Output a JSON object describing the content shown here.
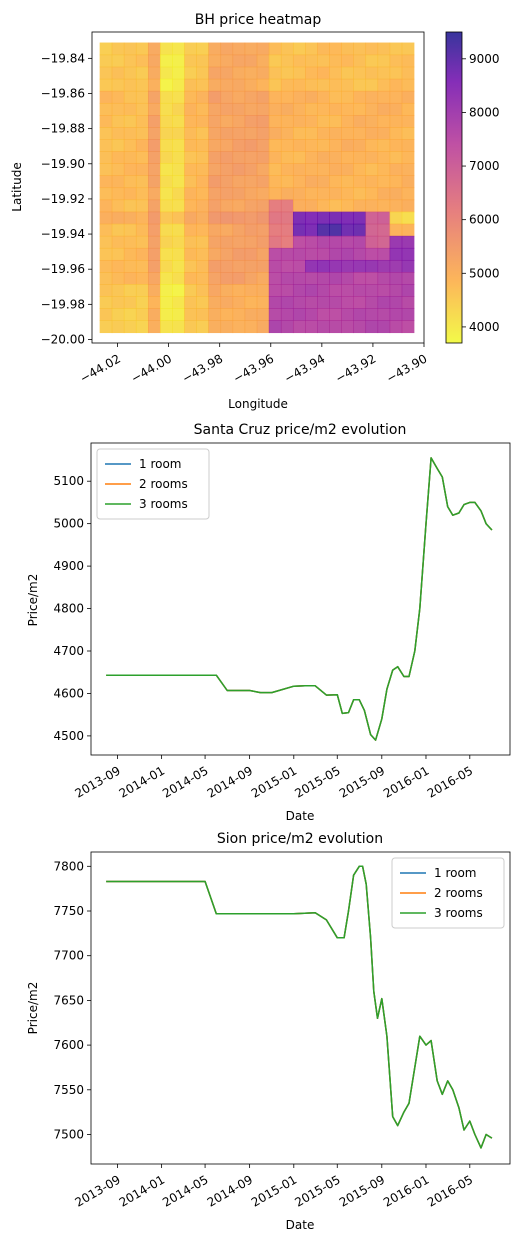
{
  "chart_data": [
    {
      "type": "heatmap",
      "title": "BH price heatmap",
      "xlabel": "Longitude",
      "ylabel": "Latitude",
      "xlim": [
        -44.03,
        -43.9
      ],
      "ylim": [
        -20.002,
        -19.825
      ],
      "x_ticks": [
        -44.02,
        -44.0,
        -43.98,
        -43.96,
        -43.94,
        -43.92,
        -43.9
      ],
      "x_tick_labels": [
        "−44.02",
        "−44.00",
        "−43.98",
        "−43.96",
        "−43.94",
        "−43.92",
        "−43.90"
      ],
      "y_ticks": [
        -19.84,
        -19.86,
        -19.88,
        -19.9,
        -19.92,
        -19.94,
        -19.96,
        -19.98,
        -20.0
      ],
      "y_tick_labels": [
        "−19.84",
        "−19.86",
        "−19.88",
        "−19.90",
        "−19.92",
        "−19.94",
        "−19.96",
        "−19.98",
        "−20.00"
      ],
      "colorbar": {
        "min": 3700,
        "max": 9500,
        "ticks": [
          4000,
          5000,
          6000,
          7000,
          8000,
          9000
        ],
        "colormap": "plasma_r",
        "colors": [
          "#f0f921",
          "#fca636",
          "#e16462",
          "#b12a90",
          "#6a00a8",
          "#0d0887"
        ]
      },
      "grid_extent": {
        "x": [
          -44.027,
          -43.904
        ],
        "y": [
          -19.831,
          -19.996
        ]
      },
      "grid_cols": 26,
      "grid_rows": 24,
      "lon_zones": [
        {
          "from": -44.03,
          "to": -44.006,
          "price": 4750
        },
        {
          "from": -44.006,
          "to": -44.004,
          "price": 5300
        },
        {
          "from": -44.004,
          "to": -43.994,
          "price": 4200
        },
        {
          "from": -43.994,
          "to": -43.983,
          "price": 4800
        },
        {
          "from": -43.983,
          "to": -43.96,
          "price": 5300
        },
        {
          "from": -43.96,
          "to": -43.9,
          "price": 4900
        }
      ],
      "east_zones": [
        {
          "x0": -43.96,
          "x1": -43.9,
          "y0": -19.95,
          "y1": -20.0,
          "price": 7600
        },
        {
          "x0": -43.948,
          "x1": -43.9,
          "y0": -19.952,
          "y1": -19.962,
          "price": 8200
        },
        {
          "x0": -43.96,
          "x1": -43.95,
          "y0": -19.92,
          "y1": -19.95,
          "price": 6200
        },
        {
          "x0": -43.95,
          "x1": -43.925,
          "y0": -19.93,
          "y1": -19.94,
          "price": 8700
        },
        {
          "x0": -43.95,
          "x1": -43.925,
          "y0": -19.94,
          "y1": -19.948,
          "price": 7600
        },
        {
          "x0": -43.925,
          "x1": -43.915,
          "y0": -19.93,
          "y1": -19.95,
          "price": 6800
        },
        {
          "x0": -43.915,
          "x1": -43.9,
          "y0": -19.938,
          "y1": -19.952,
          "price": 8300
        },
        {
          "x0": -43.915,
          "x1": -43.9,
          "y0": -19.93,
          "y1": -19.937,
          "price": 4300
        },
        {
          "x0": -43.94,
          "x1": -43.932,
          "y0": -19.932,
          "y1": -19.94,
          "price": 9300
        }
      ]
    },
    {
      "type": "line",
      "title": "Santa Cruz price/m2 evolution",
      "xlabel": "Date",
      "ylabel": "Price/m2",
      "xlim": [
        "2013-06-20",
        "2016-08-20"
      ],
      "ylim": [
        4455,
        5190
      ],
      "x_ticks": [
        "2013-09-01",
        "2014-01-01",
        "2014-05-01",
        "2014-09-01",
        "2015-01-01",
        "2015-05-01",
        "2015-09-01",
        "2016-01-01",
        "2016-05-01"
      ],
      "x_tick_labels": [
        "2013-09",
        "2014-01",
        "2014-05",
        "2014-09",
        "2015-01",
        "2015-05",
        "2015-09",
        "2016-01",
        "2016-05"
      ],
      "y_ticks": [
        4500,
        4600,
        4700,
        4800,
        4900,
        5000,
        5100
      ],
      "legend": "top-left",
      "series": [
        {
          "name": "1 room",
          "color": "#1f77b4"
        },
        {
          "name": "2 rooms",
          "color": "#ff7f0e"
        },
        {
          "name": "3 rooms",
          "color": "#2ca02c"
        }
      ],
      "x": [
        "2013-08-01",
        "2014-06-01",
        "2014-07-01",
        "2014-08-01",
        "2014-09-01",
        "2014-10-01",
        "2014-11-01",
        "2015-01-01",
        "2015-02-01",
        "2015-03-01",
        "2015-04-01",
        "2015-05-01",
        "2015-05-15",
        "2015-06-01",
        "2015-06-15",
        "2015-07-01",
        "2015-07-15",
        "2015-08-01",
        "2015-08-15",
        "2015-09-01",
        "2015-09-15",
        "2015-10-01",
        "2015-10-15",
        "2015-11-01",
        "2015-11-15",
        "2015-12-01",
        "2015-12-15",
        "2016-01-01",
        "2016-01-15",
        "2016-02-01",
        "2016-02-15",
        "2016-03-01",
        "2016-03-15",
        "2016-04-01",
        "2016-04-15",
        "2016-05-01",
        "2016-05-15",
        "2016-06-01",
        "2016-06-15",
        "2016-07-01"
      ],
      "values": [
        4643,
        4643,
        4607,
        4607,
        4607,
        4602,
        4602,
        4617,
        4618,
        4618,
        4596,
        4597,
        4553,
        4555,
        4585,
        4585,
        4560,
        4503,
        4490,
        4540,
        4610,
        4655,
        4663,
        4640,
        4640,
        4700,
        4800,
        5000,
        5155,
        5130,
        5110,
        5040,
        5020,
        5025,
        5045,
        5050,
        5050,
        5030,
        5000,
        4985
      ]
    },
    {
      "type": "line",
      "title": "Sion price/m2 evolution",
      "xlabel": "Date",
      "ylabel": "Price/m2",
      "xlim": [
        "2013-06-20",
        "2016-08-20"
      ],
      "ylim": [
        7467,
        7816
      ],
      "x_ticks": [
        "2013-09-01",
        "2014-01-01",
        "2014-05-01",
        "2014-09-01",
        "2015-01-01",
        "2015-05-01",
        "2015-09-01",
        "2016-01-01",
        "2016-05-01"
      ],
      "x_tick_labels": [
        "2013-09",
        "2014-01",
        "2014-05",
        "2014-09",
        "2015-01",
        "2015-05",
        "2015-09",
        "2016-01",
        "2016-05"
      ],
      "y_ticks": [
        7500,
        7550,
        7600,
        7650,
        7700,
        7750,
        7800
      ],
      "legend": "top-right",
      "series": [
        {
          "name": "1 room",
          "color": "#1f77b4"
        },
        {
          "name": "2 rooms",
          "color": "#ff7f0e"
        },
        {
          "name": "3 rooms",
          "color": "#2ca02c"
        }
      ],
      "x": [
        "2013-08-01",
        "2014-05-01",
        "2014-06-01",
        "2014-07-01",
        "2014-09-01",
        "2014-11-01",
        "2015-01-01",
        "2015-03-01",
        "2015-04-01",
        "2015-05-01",
        "2015-05-20",
        "2015-06-01",
        "2015-06-15",
        "2015-07-01",
        "2015-07-10",
        "2015-07-20",
        "2015-08-01",
        "2015-08-10",
        "2015-08-20",
        "2015-09-01",
        "2015-09-15",
        "2015-10-01",
        "2015-10-15",
        "2015-11-01",
        "2015-11-15",
        "2015-12-01",
        "2015-12-15",
        "2016-01-01",
        "2016-01-15",
        "2016-02-01",
        "2016-02-15",
        "2016-03-01",
        "2016-03-15",
        "2016-04-01",
        "2016-04-15",
        "2016-05-01",
        "2016-05-15",
        "2016-06-01",
        "2016-06-15",
        "2016-07-01"
      ],
      "values": [
        7783,
        7783,
        7747,
        7747,
        7747,
        7747,
        7747,
        7748,
        7740,
        7720,
        7720,
        7750,
        7790,
        7800,
        7800,
        7780,
        7720,
        7660,
        7630,
        7652,
        7610,
        7520,
        7510,
        7525,
        7535,
        7575,
        7610,
        7600,
        7605,
        7560,
        7545,
        7560,
        7550,
        7530,
        7505,
        7515,
        7500,
        7485,
        7500,
        7496
      ]
    }
  ]
}
